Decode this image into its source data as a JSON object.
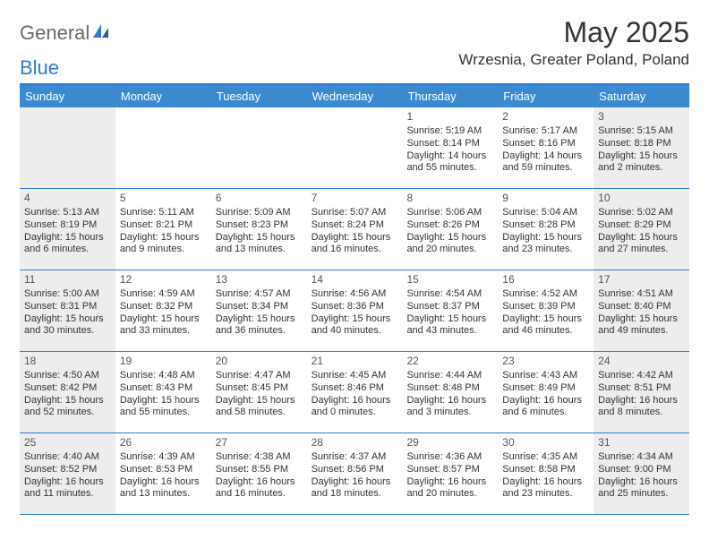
{
  "logo": {
    "text_general": "General",
    "text_blue": "Blue",
    "icon_color": "#2f7bd1"
  },
  "title": "May 2025",
  "location": "Wrzesnia, Greater Poland, Poland",
  "colors": {
    "header_bar": "#3b8ad0",
    "border": "#2f7bd1",
    "shaded_bg": "#ededed",
    "text": "#333333",
    "logo_gray": "#6b6b6b"
  },
  "weekdays": [
    "Sunday",
    "Monday",
    "Tuesday",
    "Wednesday",
    "Thursday",
    "Friday",
    "Saturday"
  ],
  "weeks": [
    [
      {
        "num": "",
        "sunrise": "",
        "sunset": "",
        "daylight": "",
        "shaded": true
      },
      {
        "num": "",
        "sunrise": "",
        "sunset": "",
        "daylight": "",
        "shaded": false
      },
      {
        "num": "",
        "sunrise": "",
        "sunset": "",
        "daylight": "",
        "shaded": false
      },
      {
        "num": "",
        "sunrise": "",
        "sunset": "",
        "daylight": "",
        "shaded": false
      },
      {
        "num": "1",
        "sunrise": "Sunrise: 5:19 AM",
        "sunset": "Sunset: 8:14 PM",
        "daylight": "Daylight: 14 hours and 55 minutes.",
        "shaded": false
      },
      {
        "num": "2",
        "sunrise": "Sunrise: 5:17 AM",
        "sunset": "Sunset: 8:16 PM",
        "daylight": "Daylight: 14 hours and 59 minutes.",
        "shaded": false
      },
      {
        "num": "3",
        "sunrise": "Sunrise: 5:15 AM",
        "sunset": "Sunset: 8:18 PM",
        "daylight": "Daylight: 15 hours and 2 minutes.",
        "shaded": true
      }
    ],
    [
      {
        "num": "4",
        "sunrise": "Sunrise: 5:13 AM",
        "sunset": "Sunset: 8:19 PM",
        "daylight": "Daylight: 15 hours and 6 minutes.",
        "shaded": true
      },
      {
        "num": "5",
        "sunrise": "Sunrise: 5:11 AM",
        "sunset": "Sunset: 8:21 PM",
        "daylight": "Daylight: 15 hours and 9 minutes.",
        "shaded": false
      },
      {
        "num": "6",
        "sunrise": "Sunrise: 5:09 AM",
        "sunset": "Sunset: 8:23 PM",
        "daylight": "Daylight: 15 hours and 13 minutes.",
        "shaded": false
      },
      {
        "num": "7",
        "sunrise": "Sunrise: 5:07 AM",
        "sunset": "Sunset: 8:24 PM",
        "daylight": "Daylight: 15 hours and 16 minutes.",
        "shaded": false
      },
      {
        "num": "8",
        "sunrise": "Sunrise: 5:06 AM",
        "sunset": "Sunset: 8:26 PM",
        "daylight": "Daylight: 15 hours and 20 minutes.",
        "shaded": false
      },
      {
        "num": "9",
        "sunrise": "Sunrise: 5:04 AM",
        "sunset": "Sunset: 8:28 PM",
        "daylight": "Daylight: 15 hours and 23 minutes.",
        "shaded": false
      },
      {
        "num": "10",
        "sunrise": "Sunrise: 5:02 AM",
        "sunset": "Sunset: 8:29 PM",
        "daylight": "Daylight: 15 hours and 27 minutes.",
        "shaded": true
      }
    ],
    [
      {
        "num": "11",
        "sunrise": "Sunrise: 5:00 AM",
        "sunset": "Sunset: 8:31 PM",
        "daylight": "Daylight: 15 hours and 30 minutes.",
        "shaded": true
      },
      {
        "num": "12",
        "sunrise": "Sunrise: 4:59 AM",
        "sunset": "Sunset: 8:32 PM",
        "daylight": "Daylight: 15 hours and 33 minutes.",
        "shaded": false
      },
      {
        "num": "13",
        "sunrise": "Sunrise: 4:57 AM",
        "sunset": "Sunset: 8:34 PM",
        "daylight": "Daylight: 15 hours and 36 minutes.",
        "shaded": false
      },
      {
        "num": "14",
        "sunrise": "Sunrise: 4:56 AM",
        "sunset": "Sunset: 8:36 PM",
        "daylight": "Daylight: 15 hours and 40 minutes.",
        "shaded": false
      },
      {
        "num": "15",
        "sunrise": "Sunrise: 4:54 AM",
        "sunset": "Sunset: 8:37 PM",
        "daylight": "Daylight: 15 hours and 43 minutes.",
        "shaded": false
      },
      {
        "num": "16",
        "sunrise": "Sunrise: 4:52 AM",
        "sunset": "Sunset: 8:39 PM",
        "daylight": "Daylight: 15 hours and 46 minutes.",
        "shaded": false
      },
      {
        "num": "17",
        "sunrise": "Sunrise: 4:51 AM",
        "sunset": "Sunset: 8:40 PM",
        "daylight": "Daylight: 15 hours and 49 minutes.",
        "shaded": true
      }
    ],
    [
      {
        "num": "18",
        "sunrise": "Sunrise: 4:50 AM",
        "sunset": "Sunset: 8:42 PM",
        "daylight": "Daylight: 15 hours and 52 minutes.",
        "shaded": true
      },
      {
        "num": "19",
        "sunrise": "Sunrise: 4:48 AM",
        "sunset": "Sunset: 8:43 PM",
        "daylight": "Daylight: 15 hours and 55 minutes.",
        "shaded": false
      },
      {
        "num": "20",
        "sunrise": "Sunrise: 4:47 AM",
        "sunset": "Sunset: 8:45 PM",
        "daylight": "Daylight: 15 hours and 58 minutes.",
        "shaded": false
      },
      {
        "num": "21",
        "sunrise": "Sunrise: 4:45 AM",
        "sunset": "Sunset: 8:46 PM",
        "daylight": "Daylight: 16 hours and 0 minutes.",
        "shaded": false
      },
      {
        "num": "22",
        "sunrise": "Sunrise: 4:44 AM",
        "sunset": "Sunset: 8:48 PM",
        "daylight": "Daylight: 16 hours and 3 minutes.",
        "shaded": false
      },
      {
        "num": "23",
        "sunrise": "Sunrise: 4:43 AM",
        "sunset": "Sunset: 8:49 PM",
        "daylight": "Daylight: 16 hours and 6 minutes.",
        "shaded": false
      },
      {
        "num": "24",
        "sunrise": "Sunrise: 4:42 AM",
        "sunset": "Sunset: 8:51 PM",
        "daylight": "Daylight: 16 hours and 8 minutes.",
        "shaded": true
      }
    ],
    [
      {
        "num": "25",
        "sunrise": "Sunrise: 4:40 AM",
        "sunset": "Sunset: 8:52 PM",
        "daylight": "Daylight: 16 hours and 11 minutes.",
        "shaded": true
      },
      {
        "num": "26",
        "sunrise": "Sunrise: 4:39 AM",
        "sunset": "Sunset: 8:53 PM",
        "daylight": "Daylight: 16 hours and 13 minutes.",
        "shaded": false
      },
      {
        "num": "27",
        "sunrise": "Sunrise: 4:38 AM",
        "sunset": "Sunset: 8:55 PM",
        "daylight": "Daylight: 16 hours and 16 minutes.",
        "shaded": false
      },
      {
        "num": "28",
        "sunrise": "Sunrise: 4:37 AM",
        "sunset": "Sunset: 8:56 PM",
        "daylight": "Daylight: 16 hours and 18 minutes.",
        "shaded": false
      },
      {
        "num": "29",
        "sunrise": "Sunrise: 4:36 AM",
        "sunset": "Sunset: 8:57 PM",
        "daylight": "Daylight: 16 hours and 20 minutes.",
        "shaded": false
      },
      {
        "num": "30",
        "sunrise": "Sunrise: 4:35 AM",
        "sunset": "Sunset: 8:58 PM",
        "daylight": "Daylight: 16 hours and 23 minutes.",
        "shaded": false
      },
      {
        "num": "31",
        "sunrise": "Sunrise: 4:34 AM",
        "sunset": "Sunset: 9:00 PM",
        "daylight": "Daylight: 16 hours and 25 minutes.",
        "shaded": true
      }
    ]
  ]
}
